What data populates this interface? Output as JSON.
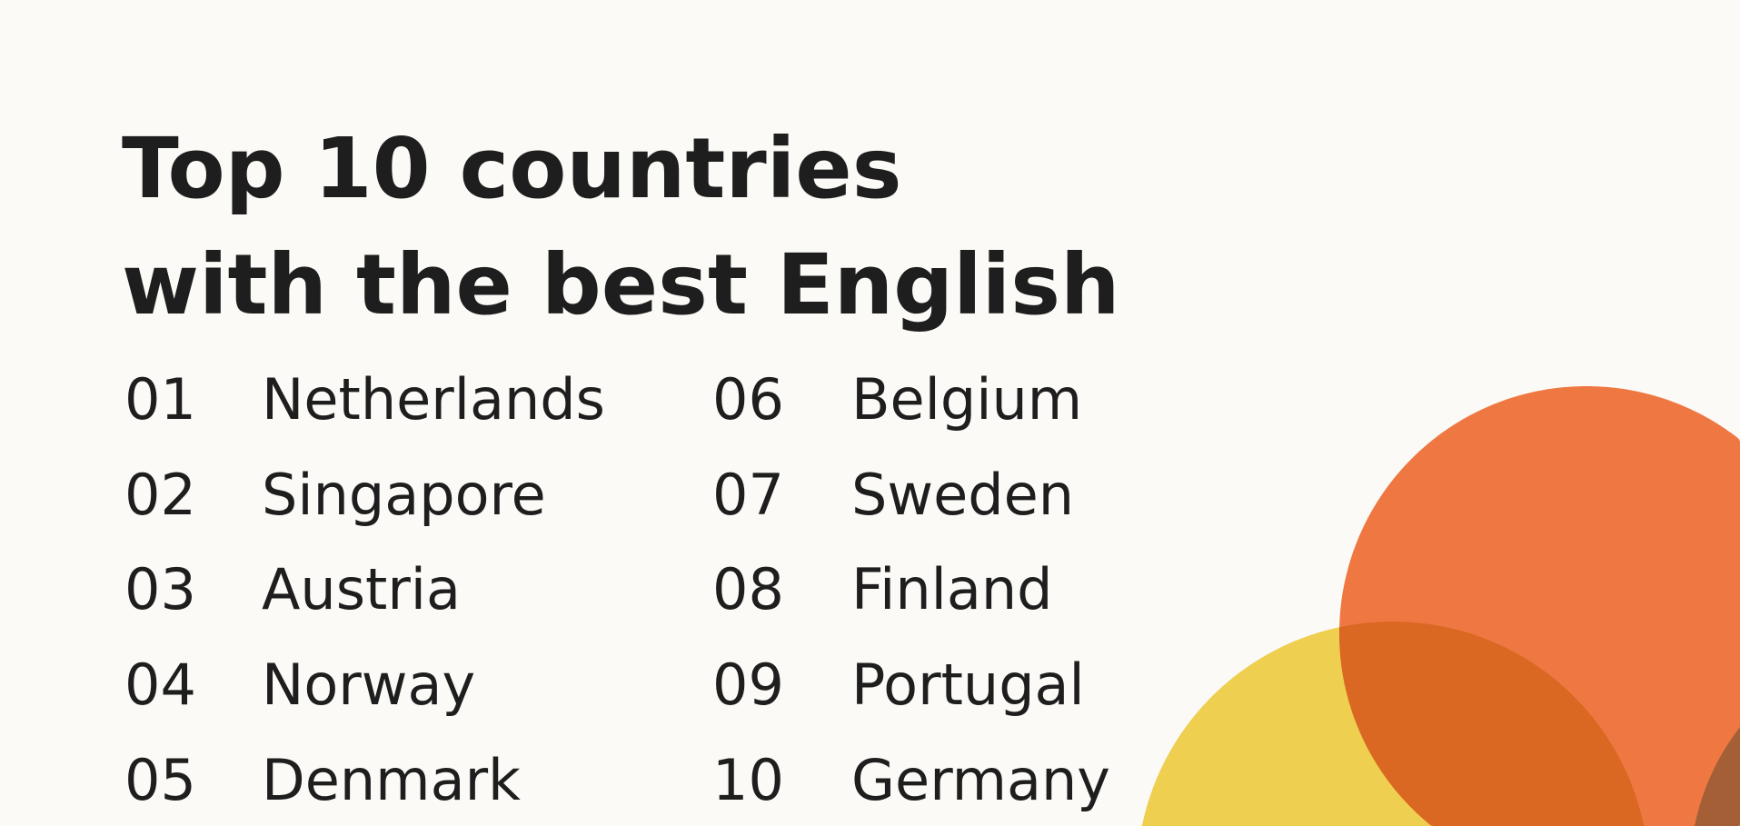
{
  "title": {
    "line1": "Top 10 countries",
    "line2": "with the best English"
  },
  "rankings": [
    {
      "rank": "01",
      "country": "Netherlands"
    },
    {
      "rank": "02",
      "country": "Singapore"
    },
    {
      "rank": "03",
      "country": "Austria"
    },
    {
      "rank": "04",
      "country": "Norway"
    },
    {
      "rank": "05",
      "country": "Denmark"
    },
    {
      "rank": "06",
      "country": "Belgium"
    },
    {
      "rank": "07",
      "country": "Sweden"
    },
    {
      "rank": "08",
      "country": "Finland"
    },
    {
      "rank": "09",
      "country": "Portugal"
    },
    {
      "rank": "10",
      "country": "Germany"
    }
  ],
  "colors": {
    "background": "#fbfaf6",
    "text": "#1e1e1e",
    "orange": "#ef7842",
    "yellow": "#eecf50",
    "overlap": "#da6722",
    "brown": "#a55f36"
  }
}
